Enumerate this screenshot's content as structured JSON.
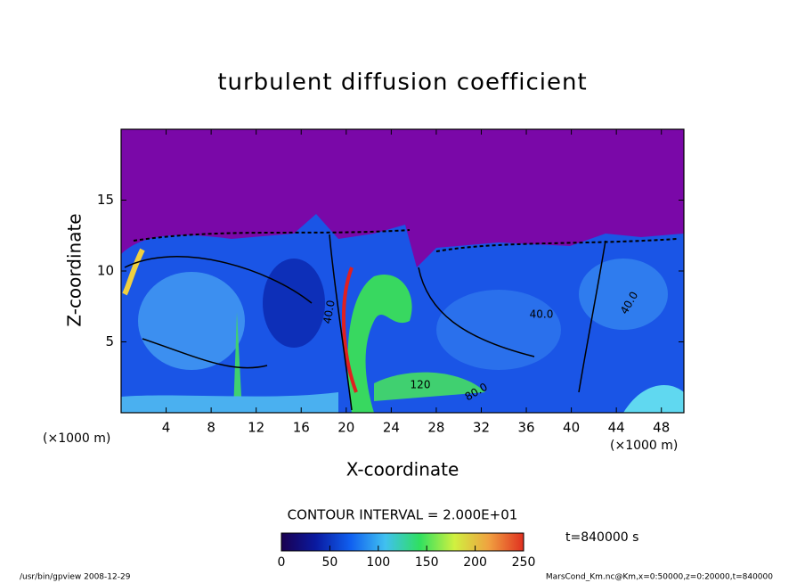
{
  "chart_data": {
    "type": "contour",
    "title": "turbulent diffusion coefficient",
    "x_label": "X-coordinate",
    "y_label": "Z-coordinate",
    "x_unit_label": "(×1000 m)",
    "xlim": [
      0,
      50
    ],
    "xticks": [
      4,
      8,
      12,
      16,
      20,
      24,
      28,
      32,
      36,
      40,
      44,
      48
    ],
    "ylim": [
      0,
      20
    ],
    "yticks": [
      5,
      10,
      15
    ],
    "contour_interval": "CONTOUR INTERVAL = 2.000E+01",
    "contour_labels": [
      "40.0",
      "40.0",
      "40.0",
      "120",
      "80.0"
    ],
    "time_label": "t=840000 s",
    "colorbar": {
      "lim": [
        0,
        250
      ],
      "ticks": [
        0,
        50,
        100,
        150,
        200,
        250
      ],
      "colors": [
        "#1a0050",
        "#0a1aa0",
        "#1060f0",
        "#40c0f0",
        "#30e060",
        "#d0f040",
        "#f0a040",
        "#e03020"
      ]
    },
    "footer_left": "/usr/bin/gpview  2008-12-29",
    "footer_right": "MarsCond_Km.nc@Km,x=0:50000,z=0:20000,t=840000"
  }
}
